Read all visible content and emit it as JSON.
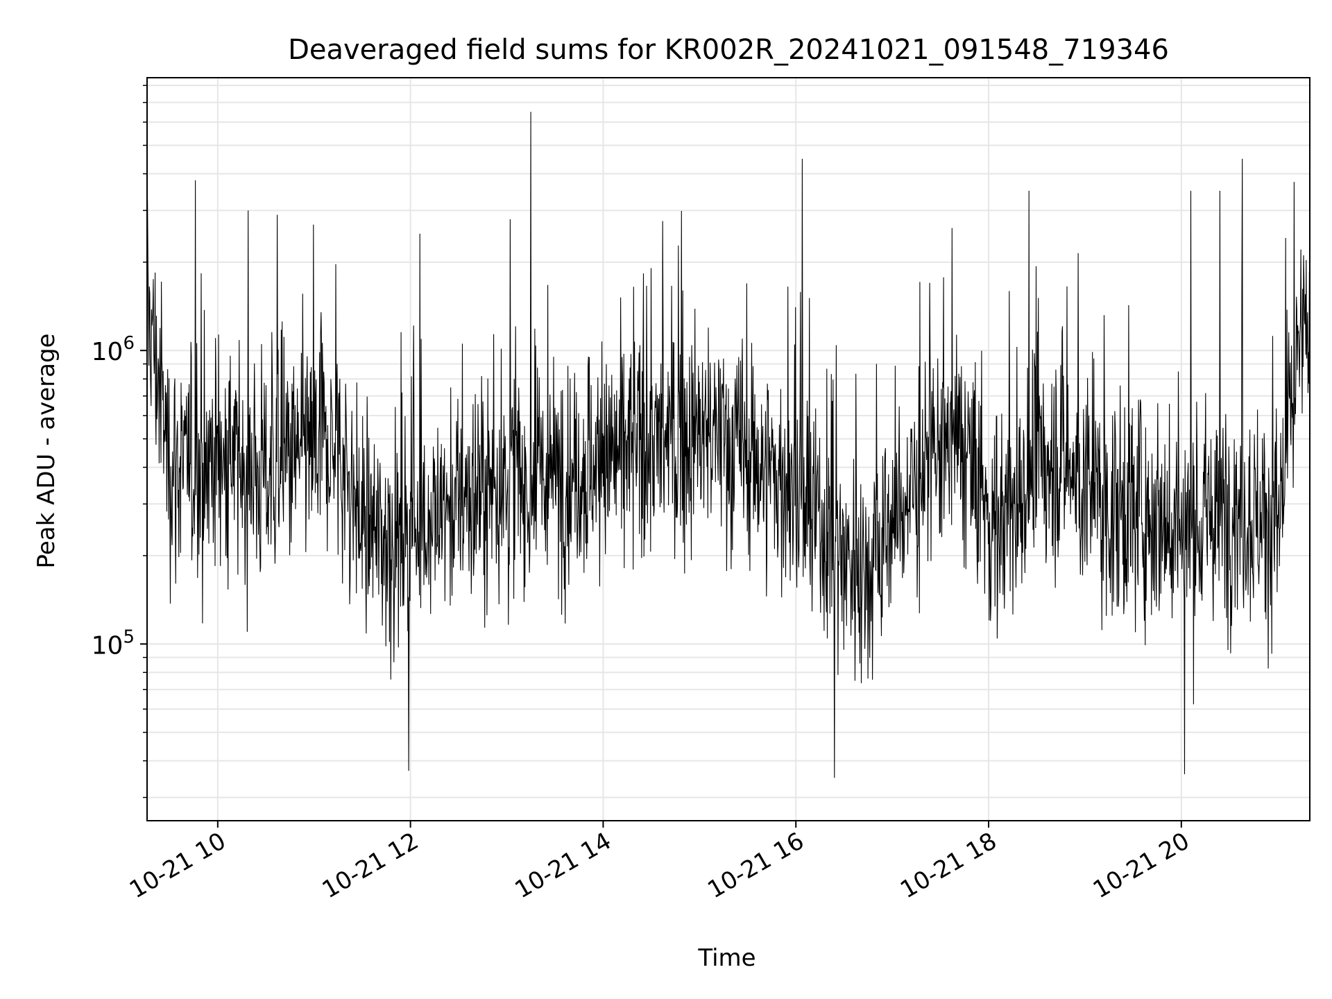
{
  "chart_data": {
    "type": "line",
    "title": "Deaveraged field sums for KR002R_20241021_091548_719346",
    "xlabel": "Time",
    "ylabel": "Peak ADU - average",
    "x_start": "2024-10-21 09:16",
    "x_end": "2024-10-21 21:20",
    "xlim": [
      "2024-10-21 09:16",
      "2024-10-21 21:20"
    ],
    "ylim": [
      25000,
      8500000
    ],
    "yscale": "log",
    "grid": true,
    "line_color": "#000000",
    "x_ticks": [
      {
        "value": "2024-10-21 10:00",
        "label": "10-21 10"
      },
      {
        "value": "2024-10-21 12:00",
        "label": "10-21 12"
      },
      {
        "value": "2024-10-21 14:00",
        "label": "10-21 14"
      },
      {
        "value": "2024-10-21 16:00",
        "label": "10-21 16"
      },
      {
        "value": "2024-10-21 18:00",
        "label": "10-21 18"
      },
      {
        "value": "2024-10-21 20:00",
        "label": "10-21 20"
      }
    ],
    "y_ticks": [
      {
        "value": 100000,
        "base": "10",
        "exp": "5"
      },
      {
        "value": 1000000,
        "base": "10",
        "exp": "6"
      }
    ],
    "series": [
      {
        "x": [
          "2024-10-21 09:16",
          "2024-10-21 09:30",
          "2024-10-21 09:45",
          "2024-10-21 10:00",
          "2024-10-21 10:15",
          "2024-10-21 10:30",
          "2024-10-21 10:45",
          "2024-10-21 11:00",
          "2024-10-21 11:15",
          "2024-10-21 11:30",
          "2024-10-21 11:45",
          "2024-10-21 12:00",
          "2024-10-21 12:15",
          "2024-10-21 12:30",
          "2024-10-21 12:45",
          "2024-10-21 13:00",
          "2024-10-21 13:15",
          "2024-10-21 13:30",
          "2024-10-21 13:45",
          "2024-10-21 14:00",
          "2024-10-21 14:15",
          "2024-10-21 14:30",
          "2024-10-21 14:45",
          "2024-10-21 15:00",
          "2024-10-21 15:15",
          "2024-10-21 15:30",
          "2024-10-21 15:45",
          "2024-10-21 16:00",
          "2024-10-21 16:15",
          "2024-10-21 16:30",
          "2024-10-21 16:45",
          "2024-10-21 17:00",
          "2024-10-21 17:15",
          "2024-10-21 17:30",
          "2024-10-21 17:45",
          "2024-10-21 18:00",
          "2024-10-21 18:15",
          "2024-10-21 18:30",
          "2024-10-21 18:45",
          "2024-10-21 19:00",
          "2024-10-21 19:15",
          "2024-10-21 19:30",
          "2024-10-21 19:45",
          "2024-10-21 20:00",
          "2024-10-21 20:15",
          "2024-10-21 20:30",
          "2024-10-21 20:45",
          "2024-10-21 21:00",
          "2024-10-21 21:15"
        ],
        "values": [
          1500000,
          420000,
          380000,
          450000,
          400000,
          380000,
          420000,
          460000,
          470000,
          260000,
          230000,
          250000,
          270000,
          300000,
          330000,
          360000,
          350000,
          380000,
          400000,
          420000,
          460000,
          480000,
          500000,
          520000,
          500000,
          450000,
          380000,
          320000,
          250000,
          200000,
          180000,
          260000,
          360000,
          450000,
          480000,
          260000,
          280000,
          400000,
          450000,
          330000,
          280000,
          300000,
          280000,
          240000,
          260000,
          300000,
          280000,
          260000,
          1100000
        ],
        "spikes": [
          {
            "x": "2024-10-21 09:46",
            "y": 3800000
          },
          {
            "x": "2024-10-21 10:19",
            "y": 3000000
          },
          {
            "x": "2024-10-21 10:37",
            "y": 2900000
          },
          {
            "x": "2024-10-21 12:06",
            "y": 2500000
          },
          {
            "x": "2024-10-21 13:15",
            "y": 6500000
          },
          {
            "x": "2024-10-21 13:02",
            "y": 2800000
          },
          {
            "x": "2024-10-21 16:04",
            "y": 4500000
          },
          {
            "x": "2024-10-21 18:25",
            "y": 3500000
          },
          {
            "x": "2024-10-21 20:06",
            "y": 3500000
          },
          {
            "x": "2024-10-21 20:24",
            "y": 3500000
          },
          {
            "x": "2024-10-21 20:38",
            "y": 4500000
          },
          {
            "x": "2024-10-21 11:59",
            "y": 37000
          },
          {
            "x": "2024-10-21 16:24",
            "y": 35000
          },
          {
            "x": "2024-10-21 20:02",
            "y": 36000
          }
        ]
      }
    ]
  }
}
